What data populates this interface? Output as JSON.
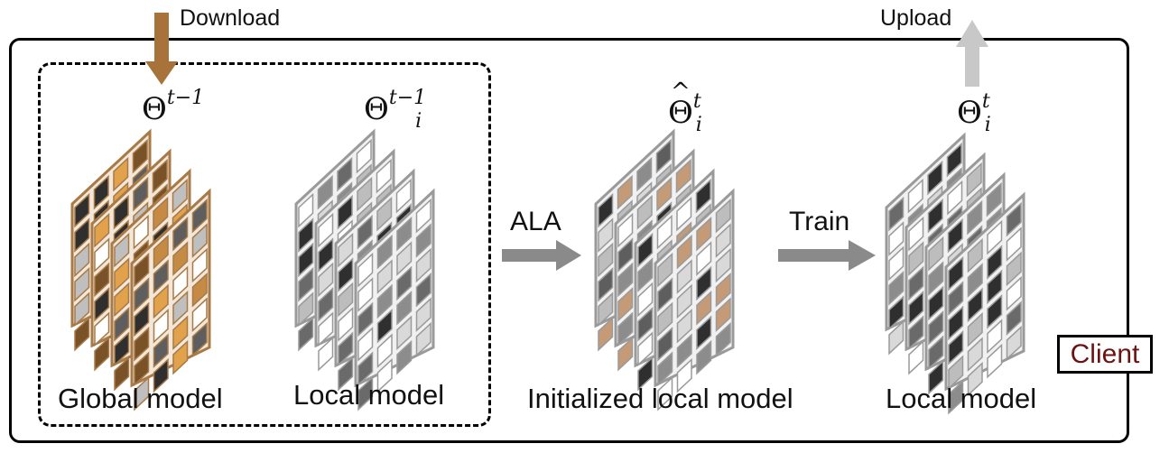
{
  "io": {
    "download": "Download",
    "upload": "Upload"
  },
  "arrows": {
    "ala": "ALA",
    "train": "Train"
  },
  "badge": {
    "client": "Client"
  },
  "models": [
    {
      "id": "global",
      "symbol": {
        "base": "Θ",
        "hat": "",
        "sup": "t−1",
        "sub": ""
      },
      "caption": "Global model"
    },
    {
      "id": "local-prev",
      "symbol": {
        "base": "Θ",
        "hat": "",
        "sup": "t−1",
        "sub": "i"
      },
      "caption": "Local model"
    },
    {
      "id": "initialized",
      "symbol": {
        "base": "Θ",
        "hat": "^",
        "sup": "t",
        "sub": "i"
      },
      "caption": "Initialized local model"
    },
    {
      "id": "local-new",
      "symbol": {
        "base": "Θ",
        "hat": "",
        "sup": "t",
        "sub": "i"
      },
      "caption": "Local model"
    }
  ],
  "colors": {
    "brown_arrow": "#a8733a",
    "gray_arrow": "#8a8a8a",
    "upload_arrow": "#c8c8c8",
    "client_text": "#6b1212",
    "global_frame": "#a87a48",
    "local_frame": "#9a9a9a"
  }
}
